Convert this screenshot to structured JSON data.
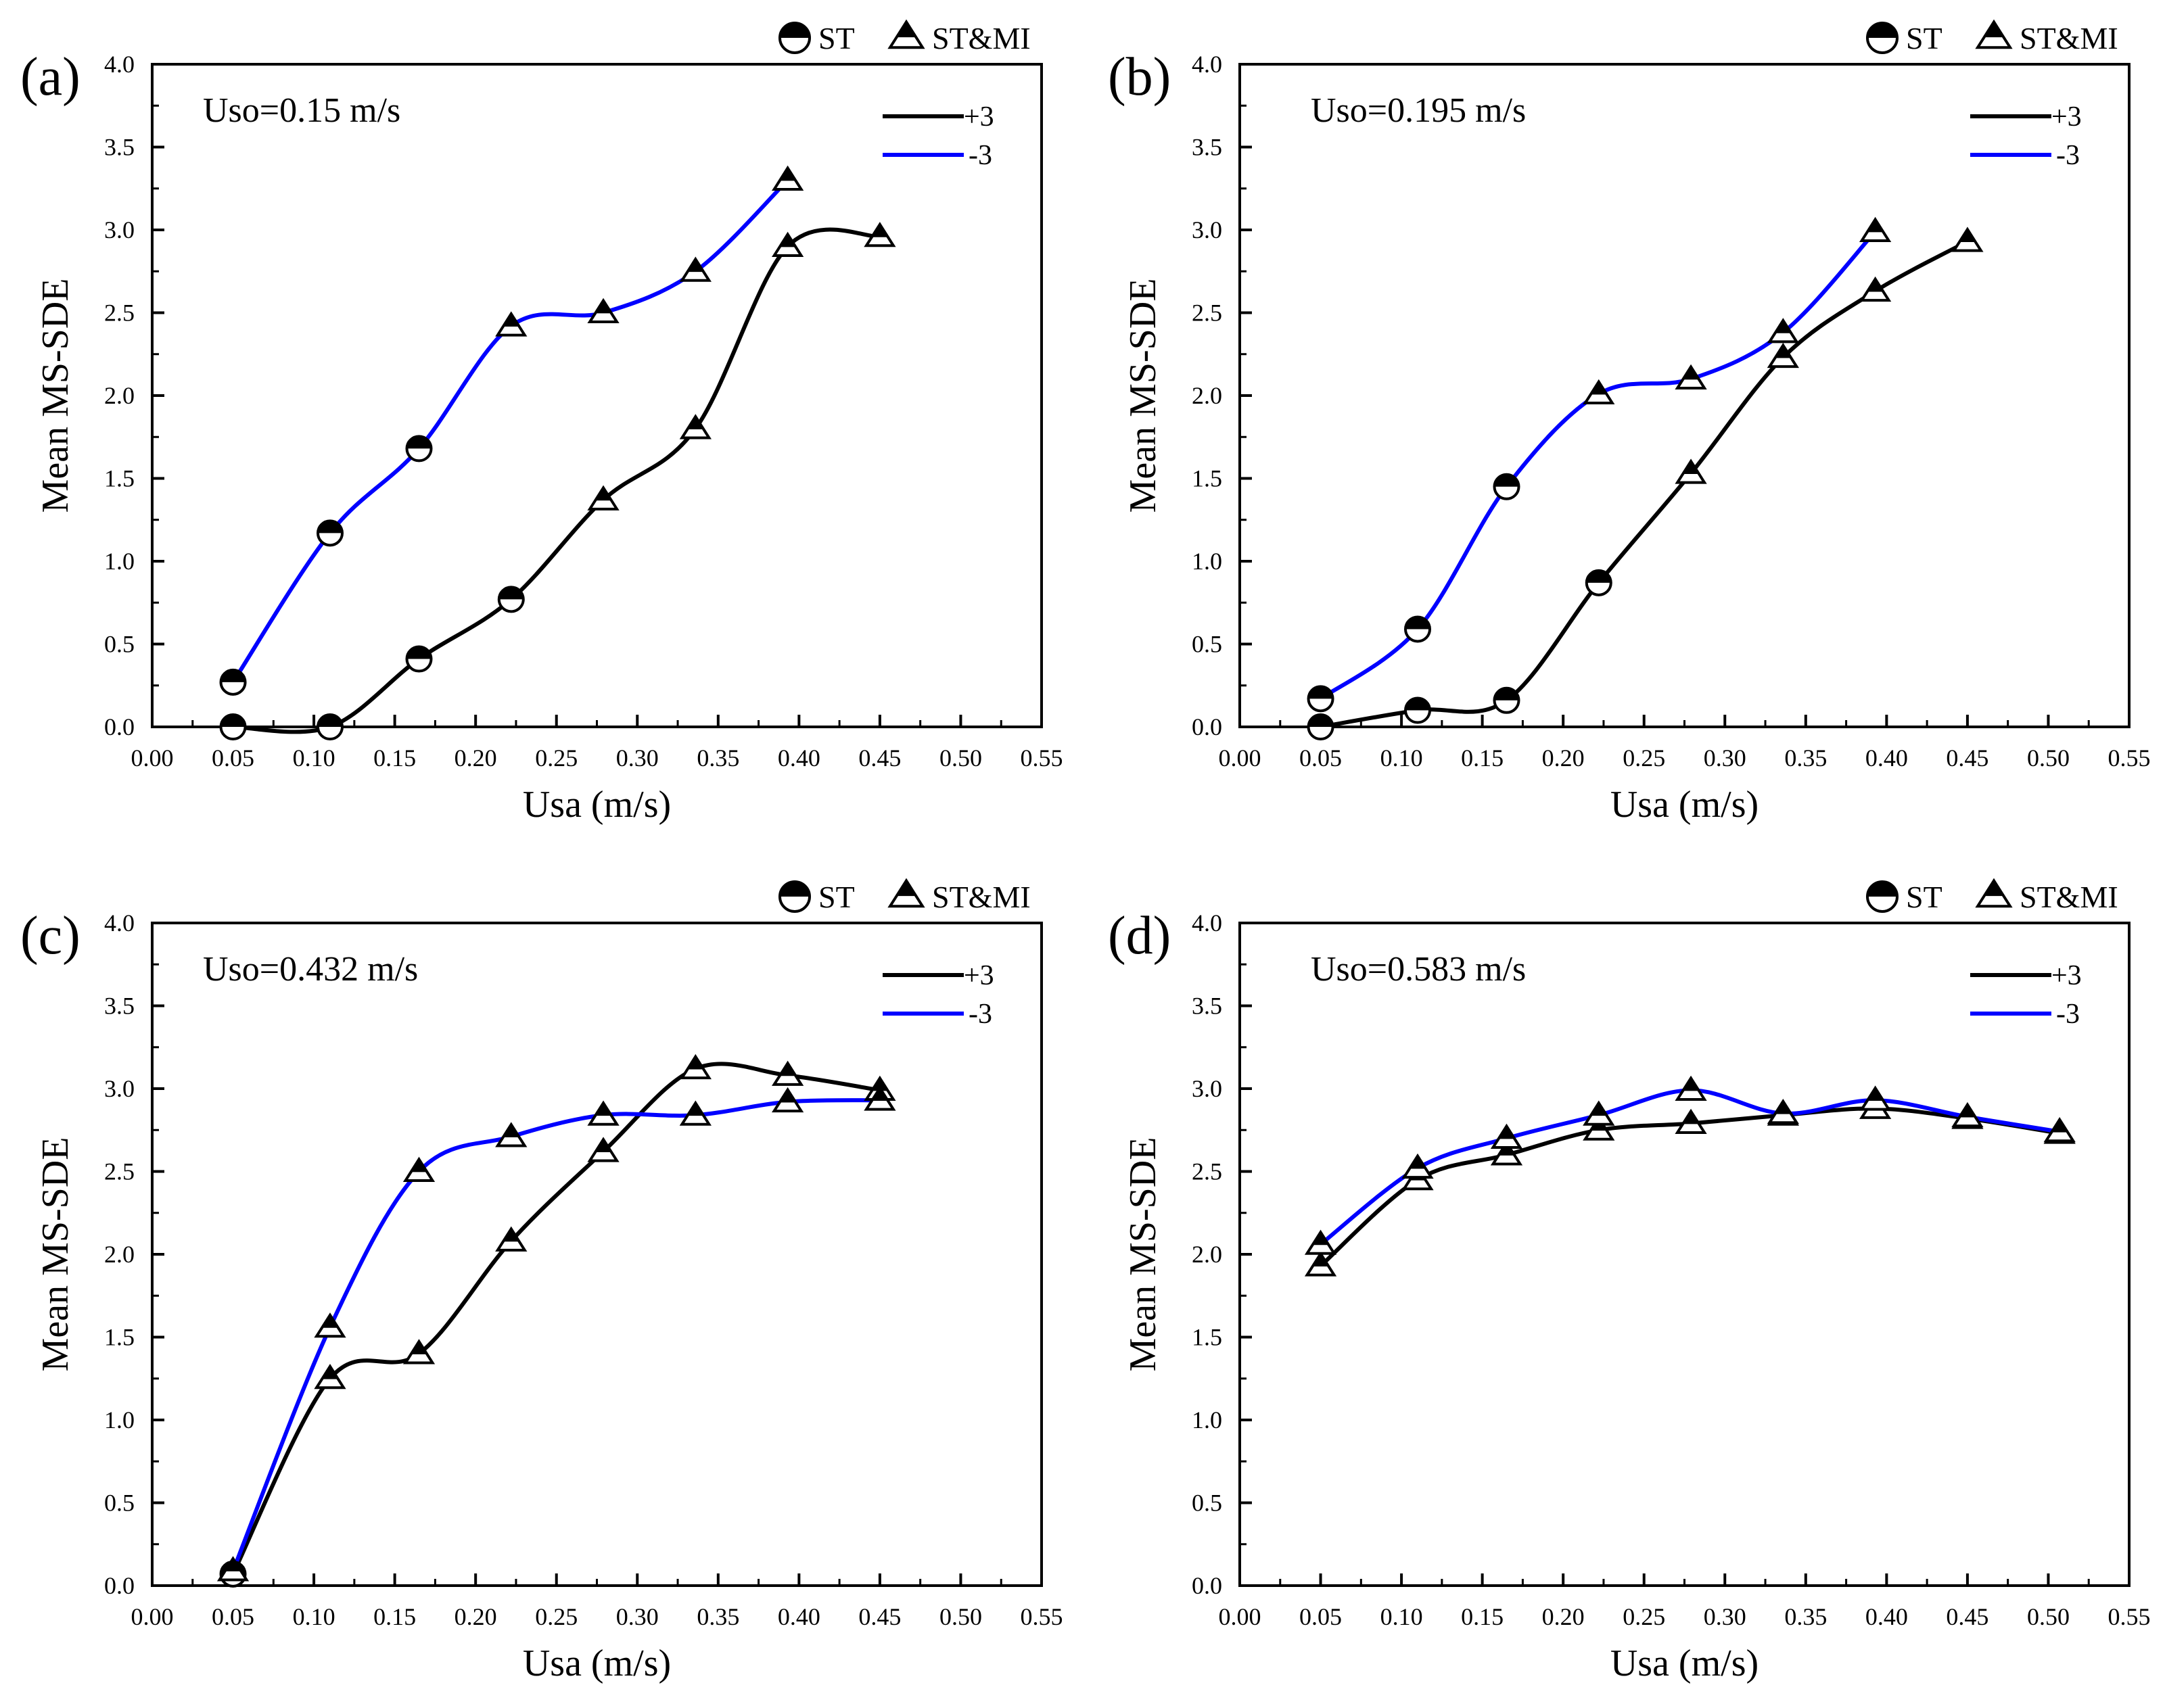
{
  "figure": {
    "legend_markers": {
      "st": "ST",
      "stmi": "ST&MI"
    },
    "legend_lines": {
      "plus": "+3",
      "minus": "-3"
    },
    "colors": {
      "plus": "#000000",
      "minus": "#0000ff"
    }
  },
  "chart_data": [
    {
      "type": "line",
      "panel": "(a)",
      "annotation": "Uso=0.15 m/s",
      "xlabel": "Usa (m/s)",
      "ylabel": "Mean MS-SDE",
      "xlim": [
        0,
        0.55
      ],
      "ylim": [
        0,
        4.0
      ],
      "xticks": [
        "0.00",
        "0.05",
        "0.10",
        "0.15",
        "0.20",
        "0.25",
        "0.30",
        "0.35",
        "0.40",
        "0.45",
        "0.50",
        "0.55"
      ],
      "yticks": [
        "0.0",
        "0.5",
        "1.0",
        "1.5",
        "2.0",
        "2.5",
        "3.0",
        "3.5",
        "4.0"
      ],
      "series": [
        {
          "name": "+3",
          "color": "#000000",
          "points": [
            {
              "x": 0.05,
              "y": 0.0,
              "marker": "ST"
            },
            {
              "x": 0.11,
              "y": 0.0,
              "marker": "ST"
            },
            {
              "x": 0.165,
              "y": 0.41,
              "marker": "ST"
            },
            {
              "x": 0.222,
              "y": 0.77,
              "marker": "ST"
            },
            {
              "x": 0.279,
              "y": 1.37,
              "marker": "ST&MI"
            },
            {
              "x": 0.336,
              "y": 1.8,
              "marker": "ST&MI"
            },
            {
              "x": 0.393,
              "y": 2.9,
              "marker": "ST&MI"
            },
            {
              "x": 0.45,
              "y": 2.96,
              "marker": "ST&MI"
            }
          ]
        },
        {
          "name": "-3",
          "color": "#0000ff",
          "points": [
            {
              "x": 0.05,
              "y": 0.27,
              "marker": "ST"
            },
            {
              "x": 0.11,
              "y": 1.17,
              "marker": "ST"
            },
            {
              "x": 0.165,
              "y": 1.68,
              "marker": "ST"
            },
            {
              "x": 0.222,
              "y": 2.42,
              "marker": "ST&MI"
            },
            {
              "x": 0.279,
              "y": 2.5,
              "marker": "ST&MI"
            },
            {
              "x": 0.336,
              "y": 2.75,
              "marker": "ST&MI"
            },
            {
              "x": 0.393,
              "y": 3.3,
              "marker": "ST&MI"
            }
          ]
        }
      ]
    },
    {
      "type": "line",
      "panel": "(b)",
      "annotation": "Uso=0.195 m/s",
      "xlabel": "Usa (m/s)",
      "ylabel": "Mean MS-SDE",
      "xlim": [
        0,
        0.55
      ],
      "ylim": [
        0,
        4.0
      ],
      "xticks": [
        "0.00",
        "0.05",
        "0.10",
        "0.15",
        "0.20",
        "0.25",
        "0.30",
        "0.35",
        "0.40",
        "0.45",
        "0.50",
        "0.55"
      ],
      "yticks": [
        "0.0",
        "0.5",
        "1.0",
        "1.5",
        "2.0",
        "2.5",
        "3.0",
        "3.5",
        "4.0"
      ],
      "series": [
        {
          "name": "+3",
          "color": "#000000",
          "points": [
            {
              "x": 0.05,
              "y": 0.0,
              "marker": "ST"
            },
            {
              "x": 0.11,
              "y": 0.1,
              "marker": "ST"
            },
            {
              "x": 0.165,
              "y": 0.16,
              "marker": "ST"
            },
            {
              "x": 0.222,
              "y": 0.87,
              "marker": "ST"
            },
            {
              "x": 0.279,
              "y": 1.53,
              "marker": "ST&MI"
            },
            {
              "x": 0.336,
              "y": 2.23,
              "marker": "ST&MI"
            },
            {
              "x": 0.393,
              "y": 2.63,
              "marker": "ST&MI"
            },
            {
              "x": 0.45,
              "y": 2.93,
              "marker": "ST&MI"
            }
          ]
        },
        {
          "name": "-3",
          "color": "#0000ff",
          "points": [
            {
              "x": 0.05,
              "y": 0.17,
              "marker": "ST"
            },
            {
              "x": 0.11,
              "y": 0.59,
              "marker": "ST"
            },
            {
              "x": 0.165,
              "y": 1.45,
              "marker": "ST"
            },
            {
              "x": 0.222,
              "y": 2.01,
              "marker": "ST&MI"
            },
            {
              "x": 0.279,
              "y": 2.1,
              "marker": "ST&MI"
            },
            {
              "x": 0.336,
              "y": 2.38,
              "marker": "ST&MI"
            },
            {
              "x": 0.393,
              "y": 2.99,
              "marker": "ST&MI"
            }
          ]
        }
      ]
    },
    {
      "type": "line",
      "panel": "(c)",
      "annotation": "Uso=0.432 m/s",
      "xlabel": "Usa (m/s)",
      "ylabel": "Mean MS-SDE",
      "xlim": [
        0,
        0.55
      ],
      "ylim": [
        0,
        4.0
      ],
      "xticks": [
        "0.00",
        "0.05",
        "0.10",
        "0.15",
        "0.20",
        "0.25",
        "0.30",
        "0.35",
        "0.40",
        "0.45",
        "0.50",
        "0.55"
      ],
      "yticks": [
        "0.0",
        "0.5",
        "1.0",
        "1.5",
        "2.0",
        "2.5",
        "3.0",
        "3.5",
        "4.0"
      ],
      "series": [
        {
          "name": "+3",
          "color": "#000000",
          "points": [
            {
              "x": 0.05,
              "y": 0.07,
              "marker": "ST"
            },
            {
              "x": 0.11,
              "y": 1.25,
              "marker": "ST&MI"
            },
            {
              "x": 0.165,
              "y": 1.4,
              "marker": "ST&MI"
            },
            {
              "x": 0.222,
              "y": 2.08,
              "marker": "ST&MI"
            },
            {
              "x": 0.279,
              "y": 2.62,
              "marker": "ST&MI"
            },
            {
              "x": 0.336,
              "y": 3.12,
              "marker": "ST&MI"
            },
            {
              "x": 0.393,
              "y": 3.08,
              "marker": "ST&MI"
            },
            {
              "x": 0.45,
              "y": 2.99,
              "marker": "ST&MI"
            }
          ]
        },
        {
          "name": "-3",
          "color": "#0000ff",
          "points": [
            {
              "x": 0.05,
              "y": 0.09,
              "marker": "ST&MI"
            },
            {
              "x": 0.11,
              "y": 1.56,
              "marker": "ST&MI"
            },
            {
              "x": 0.165,
              "y": 2.5,
              "marker": "ST&MI"
            },
            {
              "x": 0.222,
              "y": 2.71,
              "marker": "ST&MI"
            },
            {
              "x": 0.279,
              "y": 2.84,
              "marker": "ST&MI"
            },
            {
              "x": 0.336,
              "y": 2.84,
              "marker": "ST&MI"
            },
            {
              "x": 0.393,
              "y": 2.92,
              "marker": "ST&MI"
            },
            {
              "x": 0.45,
              "y": 2.93,
              "marker": "ST&MI"
            }
          ]
        }
      ]
    },
    {
      "type": "line",
      "panel": "(d)",
      "annotation": "Uso=0.583 m/s",
      "xlabel": "Usa (m/s)",
      "ylabel": "Mean MS-SDE",
      "xlim": [
        0,
        0.55
      ],
      "ylim": [
        0,
        4.0
      ],
      "xticks": [
        "0.00",
        "0.05",
        "0.10",
        "0.15",
        "0.20",
        "0.25",
        "0.30",
        "0.35",
        "0.40",
        "0.45",
        "0.50",
        "0.55"
      ],
      "yticks": [
        "0.0",
        "0.5",
        "1.0",
        "1.5",
        "2.0",
        "2.5",
        "3.0",
        "3.5",
        "4.0"
      ],
      "series": [
        {
          "name": "+3",
          "color": "#000000",
          "points": [
            {
              "x": 0.05,
              "y": 1.93,
              "marker": "ST&MI"
            },
            {
              "x": 0.11,
              "y": 2.45,
              "marker": "ST&MI"
            },
            {
              "x": 0.165,
              "y": 2.6,
              "marker": "ST&MI"
            },
            {
              "x": 0.222,
              "y": 2.75,
              "marker": "ST&MI"
            },
            {
              "x": 0.279,
              "y": 2.79,
              "marker": "ST&MI"
            },
            {
              "x": 0.336,
              "y": 2.84,
              "marker": "ST&MI"
            },
            {
              "x": 0.393,
              "y": 2.88,
              "marker": "ST&MI"
            },
            {
              "x": 0.45,
              "y": 2.82,
              "marker": "ST&MI"
            },
            {
              "x": 0.507,
              "y": 2.73,
              "marker": "ST&MI"
            }
          ]
        },
        {
          "name": "-3",
          "color": "#0000ff",
          "points": [
            {
              "x": 0.05,
              "y": 2.06,
              "marker": "ST&MI"
            },
            {
              "x": 0.11,
              "y": 2.52,
              "marker": "ST&MI"
            },
            {
              "x": 0.165,
              "y": 2.7,
              "marker": "ST&MI"
            },
            {
              "x": 0.222,
              "y": 2.84,
              "marker": "ST&MI"
            },
            {
              "x": 0.279,
              "y": 2.99,
              "marker": "ST&MI"
            },
            {
              "x": 0.336,
              "y": 2.85,
              "marker": "ST&MI"
            },
            {
              "x": 0.393,
              "y": 2.93,
              "marker": "ST&MI"
            },
            {
              "x": 0.45,
              "y": 2.83,
              "marker": "ST&MI"
            },
            {
              "x": 0.507,
              "y": 2.74,
              "marker": "ST&MI"
            }
          ]
        }
      ]
    }
  ]
}
